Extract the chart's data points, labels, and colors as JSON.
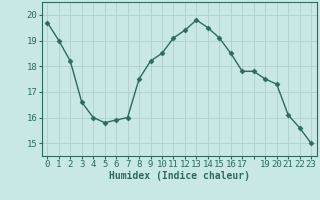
{
  "x": [
    0,
    1,
    2,
    3,
    4,
    5,
    6,
    7,
    8,
    9,
    10,
    11,
    12,
    13,
    14,
    15,
    16,
    17,
    18,
    19,
    20,
    21,
    22,
    23
  ],
  "y": [
    19.7,
    19.0,
    18.2,
    16.6,
    16.0,
    15.8,
    15.9,
    16.0,
    17.5,
    18.2,
    18.5,
    19.1,
    19.4,
    19.8,
    19.5,
    19.1,
    18.5,
    17.8,
    17.8,
    17.5,
    17.3,
    16.1,
    15.6,
    15.0
  ],
  "line_color": "#2e6b5e",
  "marker": "D",
  "marker_size": 2.5,
  "bg_color": "#c8e8e5",
  "grid_color": "#b0d0cc",
  "tick_color": "#2e6b5e",
  "xlabel": "Humidex (Indice chaleur)",
  "ylim": [
    14.5,
    20.5
  ],
  "yticks": [
    15,
    16,
    17,
    18,
    19,
    20
  ],
  "xtick_show": [
    0,
    1,
    2,
    3,
    4,
    5,
    6,
    7,
    8,
    9,
    10,
    11,
    12,
    13,
    14,
    15,
    16,
    17,
    19,
    20,
    21,
    22,
    23
  ],
  "label_fontsize": 7,
  "tick_fontsize": 6.5
}
